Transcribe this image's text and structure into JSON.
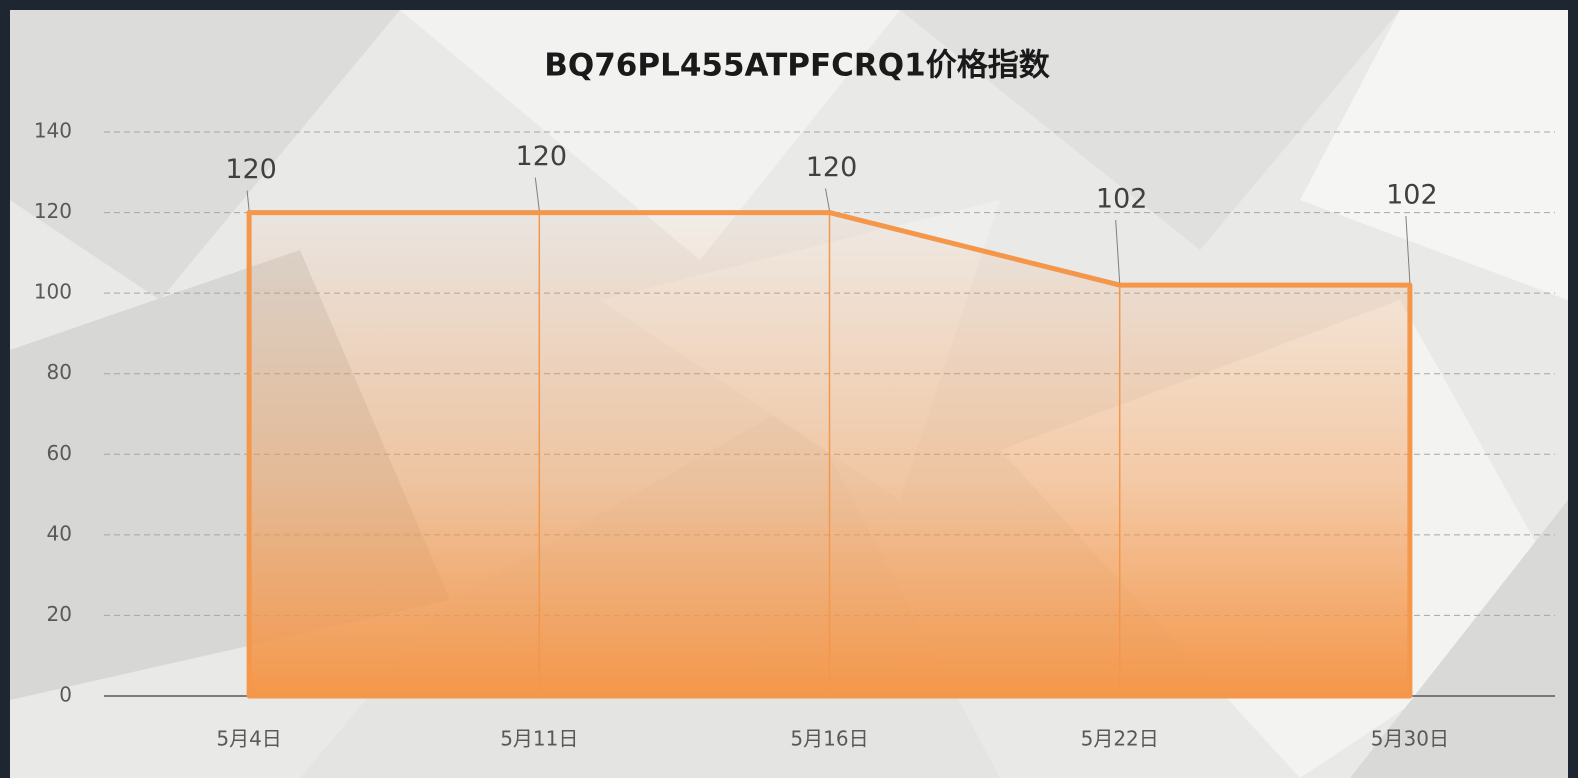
{
  "chart_data": {
    "type": "area",
    "title": "BQ76PL455ATPFCRQ1价格指数",
    "categories": [
      "5月4日",
      "5月11日",
      "5月16日",
      "5月22日",
      "5月30日"
    ],
    "values": [
      120,
      120,
      120,
      102,
      102
    ],
    "color": "#f4974a",
    "ylim": [
      0,
      140
    ],
    "yticks": [
      0,
      20,
      40,
      60,
      80,
      100,
      120,
      140
    ],
    "grid": true
  }
}
